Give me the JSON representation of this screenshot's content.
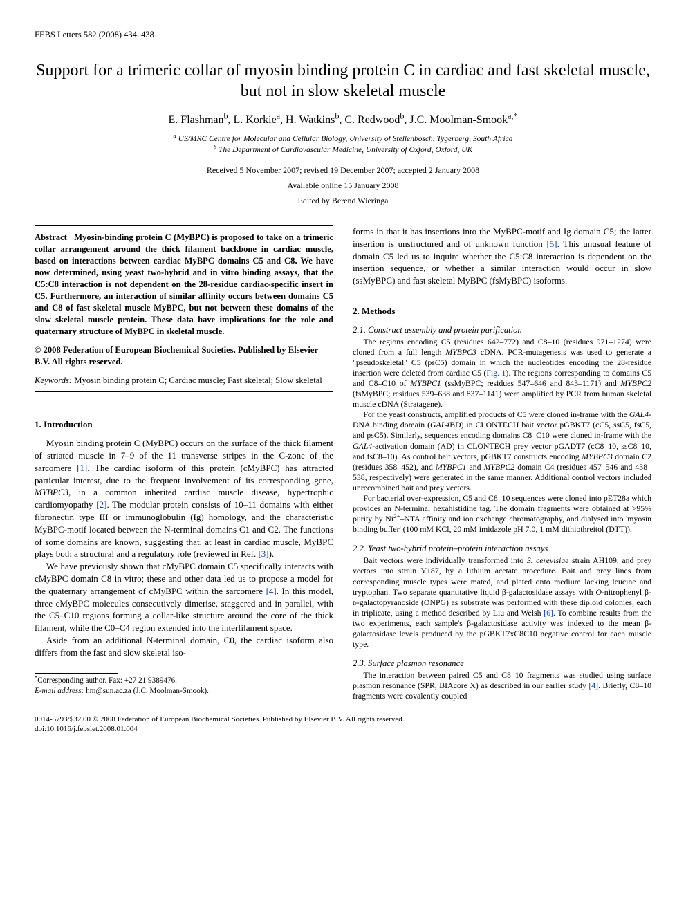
{
  "header": {
    "journal_line": "FEBS Letters 582 (2008) 434–438"
  },
  "title": "Support for a trimeric collar of myosin binding protein C in cardiac and fast skeletal muscle, but not in slow skeletal muscle",
  "authors_html": "E. Flashman<sup>b</sup>, L. Korkie<sup>a</sup>, H. Watkins<sup>b</sup>, C. Redwood<sup>b</sup>, J.C. Moolman-Smook<sup>a,*</sup>",
  "affiliations": {
    "a": "US/MRC Centre for Molecular and Cellular Biology, University of Stellenbosch, Tygerberg, South Africa",
    "b": "The Department of Cardiovascular Medicine, University of Oxford, Oxford, UK"
  },
  "dates": {
    "received": "Received 5 November 2007; revised 19 December 2007; accepted 2 January 2008",
    "available": "Available online 15 January 2008",
    "edited": "Edited by Berend Wieringa"
  },
  "abstract": {
    "label": "Abstract",
    "text": "Myosin-binding protein C (MyBPC) is proposed to take on a trimeric collar arrangement around the thick filament backbone in cardiac muscle, based on interactions between cardiac MyBPC domains C5 and C8. We have now determined, using yeast two-hybrid and in vitro binding assays, that the C5:C8 interaction is not dependent on the 28-residue cardiac-specific insert in C5. Furthermore, an interaction of similar affinity occurs between domains C5 and C8 of fast skeletal muscle MyBPC, but not between these domains of the slow skeletal muscle protein. These data have implications for the role and quaternary structure of MyBPC in skeletal muscle."
  },
  "copyright": "© 2008 Federation of European Biochemical Societies. Published by Elsevier B.V. All rights reserved.",
  "keywords": {
    "label": "Keywords:",
    "text": "Myosin binding protein C; Cardiac muscle; Fast skeletal; Slow skeletal"
  },
  "sections": {
    "intro": {
      "heading": "1. Introduction",
      "p1_html": "Myosin binding protein C (MyBPC) occurs on the surface of the thick filament of striated muscle in 7–9 of the 11 transverse stripes in the C-zone of the sarcomere <span class=\"ref-link\">[1]</span>. The cardiac isoform of this protein (cMyBPC) has attracted particular interest, due to the frequent involvement of its corresponding gene, <i>MYBPC3</i>, in a common inherited cardiac muscle disease, hypertrophic cardiomyopathy <span class=\"ref-link\">[2]</span>. The modular protein consists of 10–11 domains with either fibronectin type III or immunoglobulin (Ig) homology, and the characteristic MyBPC-motif located between the N-terminal domains C1 and C2. The functions of some domains are known, suggesting that, at least in cardiac muscle, MyBPC plays both a structural and a regulatory role (reviewed in Ref. <span class=\"ref-link\">[3]</span>).",
      "p2_html": "We have previously shown that cMyBPC domain C5 specifically interacts with cMyBPC domain C8 in vitro; these and other data led us to propose a model for the quaternary arrangement of cMyBPC within the sarcomere <span class=\"ref-link\">[4]</span>. In this model, three cMyBPC molecules consecutively dimerise, staggered and in parallel, with the C5–C10 regions forming a collar-like structure around the core of the thick filament, while the C0–C4 region extended into the interfilament space.",
      "p3": "Aside from an additional N-terminal domain, C0, the cardiac isoform also differs from the fast and slow skeletal iso-"
    },
    "intro_continued_html": "forms in that it has insertions into the MyBPC-motif and Ig domain C5; the latter insertion is unstructured and of unknown function <span class=\"ref-link\">[5]</span>. This unusual feature of domain C5 led us to inquire whether the C5:C8 interaction is dependent on the insertion sequence, or whether a similar interaction would occur in slow (ssMyBPC) and fast skeletal MyBPC (fsMyBPC) isoforms.",
    "methods": {
      "heading": "2. Methods",
      "s1": {
        "heading": "2.1. Construct assembly and protein purification",
        "p1_html": "The regions encoding C5 (residues 642–772) and C8–10 (residues 971–1274) were cloned from a full length <i>MYBPC3</i> cDNA. PCR-mutagenesis was used to generate a \"pseudoskeletal\" C5 (psC5) domain in which the nucleotides encoding the 28-residue insertion were deleted from cardiac C5 (<span class=\"ref-link\">Fig. 1</span>). The regions corresponding to domains C5 and C8–C10 of <i>MYBPC1</i> (ssMyBPC; residues 547–646 and 843–1171) and <i>MYBPC2</i> (fsMyBPC; residues 539–638 and 837–1141) were amplified by PCR from human skeletal muscle cDNA (Stratagene).",
        "p2_html": "For the yeast constructs, amplified products of C5 were cloned in-frame with the <i>GAL4</i>-DNA binding domain (<i>GAL4</i>BD) in CLONTECH bait vector pGBKT7 (cC5, ssC5, fsC5, and psC5). Similarly, sequences encoding domains C8–C10 were cloned in-frame with the <i>GAL4</i>-activation domain (AD) in CLONTECH prey vector pGADT7 (cC8–10, ssC8–10, and fsC8–10). As control bait vectors, pGBKT7 constructs encoding <i>MYBPC3</i> domain C2 (residues 358–452), and <i>MYBPC1</i> and <i>MYBPC2</i> domain C4 (residues 457–546 and 438–538, respectively) were generated in the same manner. Additional control vectors included unrecombined bait and prey vectors.",
        "p3_html": "For bacterial over-expression, C5 and C8–10 sequences were cloned into pET28a which provides an N-terminal hexahistidine tag. The domain fragments were obtained at >95% purity by Ni<sup>2+</sup>–NTA affinity and ion exchange chromatography, and dialysed into 'myosin binding buffer' (100 mM KCl, 20 mM imidazole pH 7.0, 1 mM dithiothreitol (DTT))."
      },
      "s2": {
        "heading": "2.2. Yeast two-hybrid protein–protein interaction assays",
        "p1_html": "Bait vectors were individually transformed into <i>S. cerevisiae</i> strain AH109, and prey vectors into strain Y187, by a lithium acetate procedure. Bait and prey lines from corresponding muscle types were mated, and plated onto medium lacking leucine and tryptophan. Two separate quantitative liquid β-galactosidase assays with <i>O</i>-nitrophenyl β-<span style=\"font-variant:small-caps\">d</span>-galactopyranoside (ONPG) as substrate was performed with these diploid colonies, each in triplicate, using a method described by Liu and Welsh <span class=\"ref-link\">[6]</span>. To combine results from the two experiments, each sample's β-galactosidase activity was indexed to the mean β-galactosidase levels produced by the pGBKT7xC8C10 negative control for each muscle type."
      },
      "s3": {
        "heading": "2.3. Surface plasmon resonance",
        "p1_html": "The interaction between paired C5 and C8–10 fragments was studied using surface plasmon resonance (SPR, BIAcore X) as described in our earlier study <span class=\"ref-link\">[4]</span>. Briefly, C8–10 fragments were covalently coupled"
      }
    }
  },
  "footnote": {
    "corresponding": "Corresponding author. Fax: +27 21 9389476.",
    "email_label": "E-mail address:",
    "email": "hm@sun.ac.za (J.C. Moolman-Smook)."
  },
  "footer": {
    "line1": "0014-5793/$32.00 © 2008 Federation of European Biochemical Societies. Published by Elsevier B.V. All rights reserved.",
    "line2": "doi:10.1016/j.febslet.2008.01.004"
  }
}
